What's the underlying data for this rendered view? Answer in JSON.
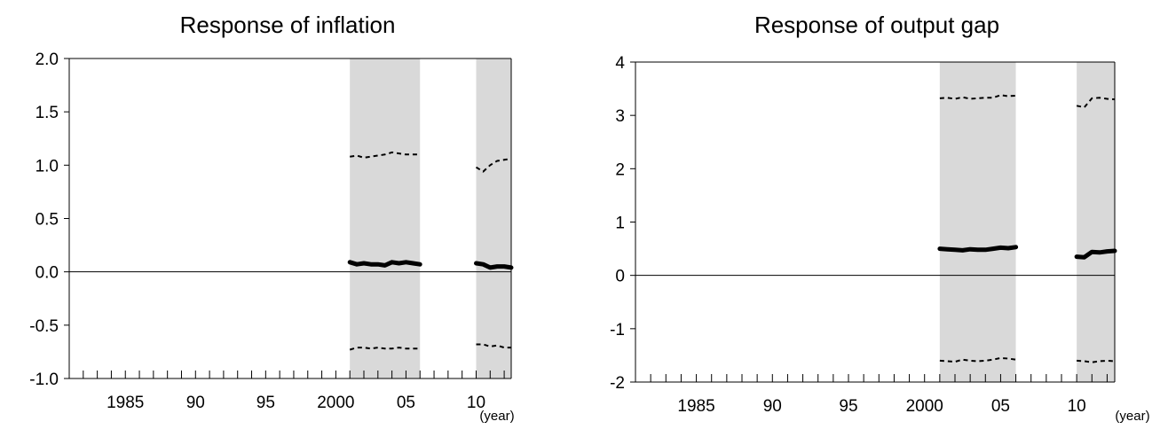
{
  "chart_data": [
    {
      "type": "line",
      "title": "Response of inflation",
      "xlabel": "",
      "ylabel": "",
      "x_unit_label": "(year)",
      "xlim": [
        1981,
        2012.5
      ],
      "ylim": [
        -1.0,
        2.0
      ],
      "y_ticks": [
        -1.0,
        -0.5,
        0.0,
        0.5,
        1.0,
        1.5,
        2.0
      ],
      "y_tick_labels": [
        "-1.0",
        "-0.5",
        "0.0",
        "0.5",
        "1.0",
        "1.5",
        "2.0"
      ],
      "x_tick_labels": [
        {
          "x": 1985,
          "label": "1985"
        },
        {
          "x": 1990,
          "label": "90"
        },
        {
          "x": 1995,
          "label": "95"
        },
        {
          "x": 2000,
          "label": "2000"
        },
        {
          "x": 2005,
          "label": "05"
        },
        {
          "x": 2010,
          "label": "10"
        }
      ],
      "shaded_periods": [
        [
          2001,
          2006
        ],
        [
          2010,
          2012.5
        ]
      ],
      "series": [
        {
          "style": "solid-thick",
          "segments": [
            [
              [
                2001,
                0.09
              ],
              [
                2001.5,
                0.07
              ],
              [
                2002,
                0.08
              ],
              [
                2002.5,
                0.07
              ],
              [
                2003,
                0.07
              ],
              [
                2003.5,
                0.06
              ],
              [
                2004,
                0.09
              ],
              [
                2004.5,
                0.08
              ],
              [
                2005,
                0.09
              ],
              [
                2005.5,
                0.08
              ],
              [
                2006,
                0.07
              ]
            ],
            [
              [
                2010,
                0.08
              ],
              [
                2010.5,
                0.07
              ],
              [
                2011,
                0.04
              ],
              [
                2011.5,
                0.05
              ],
              [
                2012,
                0.05
              ],
              [
                2012.5,
                0.04
              ]
            ]
          ]
        },
        {
          "style": "dashed",
          "segments": [
            [
              [
                2001,
                1.08
              ],
              [
                2001.5,
                1.09
              ],
              [
                2002,
                1.07
              ],
              [
                2002.5,
                1.08
              ],
              [
                2003,
                1.09
              ],
              [
                2003.5,
                1.1
              ],
              [
                2004,
                1.12
              ],
              [
                2004.5,
                1.11
              ],
              [
                2005,
                1.1
              ],
              [
                2005.5,
                1.1
              ],
              [
                2006,
                1.1
              ]
            ],
            [
              [
                2010,
                0.98
              ],
              [
                2010.5,
                0.94
              ],
              [
                2011,
                1.0
              ],
              [
                2011.5,
                1.04
              ],
              [
                2012,
                1.05
              ],
              [
                2012.5,
                1.06
              ]
            ]
          ]
        },
        {
          "style": "dashed",
          "segments": [
            [
              [
                2001,
                -0.73
              ],
              [
                2001.5,
                -0.71
              ],
              [
                2002,
                -0.71
              ],
              [
                2002.5,
                -0.72
              ],
              [
                2003,
                -0.71
              ],
              [
                2003.5,
                -0.72
              ],
              [
                2004,
                -0.72
              ],
              [
                2004.5,
                -0.71
              ],
              [
                2005,
                -0.72
              ],
              [
                2005.5,
                -0.72
              ],
              [
                2006,
                -0.72
              ]
            ],
            [
              [
                2010,
                -0.68
              ],
              [
                2010.5,
                -0.68
              ],
              [
                2011,
                -0.7
              ],
              [
                2011.5,
                -0.69
              ],
              [
                2012,
                -0.71
              ],
              [
                2012.5,
                -0.71
              ]
            ]
          ]
        }
      ]
    },
    {
      "type": "line",
      "title": "Response of output gap",
      "xlabel": "",
      "ylabel": "",
      "x_unit_label": "(year)",
      "xlim": [
        1981,
        2012.5
      ],
      "ylim": [
        -2,
        4
      ],
      "y_ticks": [
        -2,
        -1,
        0,
        1,
        2,
        3,
        4
      ],
      "y_tick_labels": [
        "-2",
        "-1",
        "0",
        "1",
        "2",
        "3",
        "4"
      ],
      "x_tick_labels": [
        {
          "x": 1985,
          "label": "1985"
        },
        {
          "x": 1990,
          "label": "90"
        },
        {
          "x": 1995,
          "label": "95"
        },
        {
          "x": 2000,
          "label": "2000"
        },
        {
          "x": 2005,
          "label": "05"
        },
        {
          "x": 2010,
          "label": "10"
        }
      ],
      "shaded_periods": [
        [
          2001,
          2006
        ],
        [
          2010,
          2012.5
        ]
      ],
      "series": [
        {
          "style": "solid-thick",
          "segments": [
            [
              [
                2001,
                0.5
              ],
              [
                2001.5,
                0.49
              ],
              [
                2002,
                0.48
              ],
              [
                2002.5,
                0.47
              ],
              [
                2003,
                0.49
              ],
              [
                2003.5,
                0.48
              ],
              [
                2004,
                0.48
              ],
              [
                2004.5,
                0.5
              ],
              [
                2005,
                0.52
              ],
              [
                2005.5,
                0.51
              ],
              [
                2006,
                0.53
              ]
            ],
            [
              [
                2010,
                0.35
              ],
              [
                2010.5,
                0.34
              ],
              [
                2011,
                0.44
              ],
              [
                2011.5,
                0.43
              ],
              [
                2012,
                0.45
              ],
              [
                2012.5,
                0.46
              ]
            ]
          ]
        },
        {
          "style": "dashed",
          "segments": [
            [
              [
                2001,
                3.32
              ],
              [
                2001.5,
                3.33
              ],
              [
                2002,
                3.31
              ],
              [
                2002.5,
                3.34
              ],
              [
                2003,
                3.31
              ],
              [
                2003.5,
                3.32
              ],
              [
                2004,
                3.33
              ],
              [
                2004.5,
                3.33
              ],
              [
                2005,
                3.38
              ],
              [
                2005.5,
                3.36
              ],
              [
                2006,
                3.37
              ]
            ],
            [
              [
                2010,
                3.18
              ],
              [
                2010.5,
                3.15
              ],
              [
                2011,
                3.32
              ],
              [
                2011.5,
                3.33
              ],
              [
                2012,
                3.31
              ],
              [
                2012.5,
                3.3
              ]
            ]
          ]
        },
        {
          "style": "dashed",
          "segments": [
            [
              [
                2001,
                -1.6
              ],
              [
                2001.5,
                -1.61
              ],
              [
                2002,
                -1.62
              ],
              [
                2002.5,
                -1.58
              ],
              [
                2003,
                -1.6
              ],
              [
                2003.5,
                -1.61
              ],
              [
                2004,
                -1.6
              ],
              [
                2004.5,
                -1.58
              ],
              [
                2005,
                -1.55
              ],
              [
                2005.5,
                -1.56
              ],
              [
                2006,
                -1.58
              ]
            ],
            [
              [
                2010,
                -1.6
              ],
              [
                2010.5,
                -1.61
              ],
              [
                2011,
                -1.63
              ],
              [
                2011.5,
                -1.61
              ],
              [
                2012,
                -1.6
              ],
              [
                2012.5,
                -1.61
              ]
            ]
          ]
        }
      ]
    }
  ]
}
